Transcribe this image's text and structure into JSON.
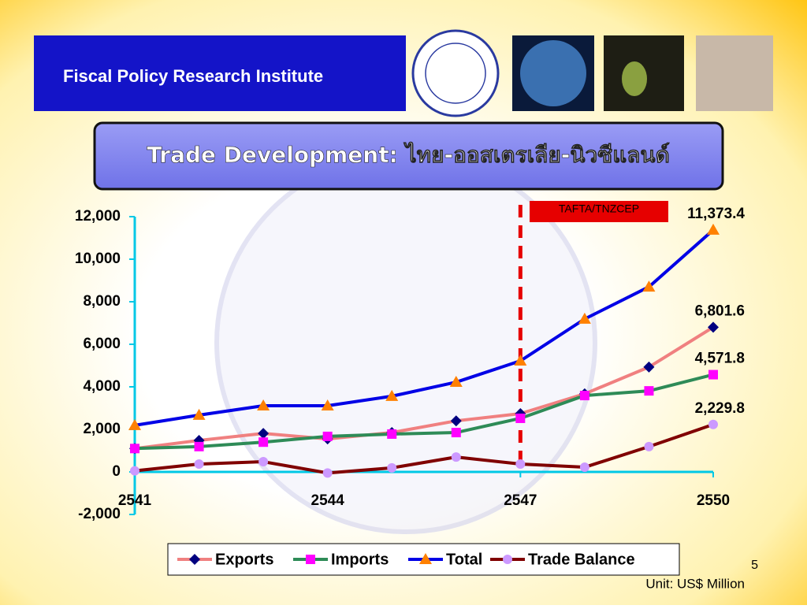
{
  "header": {
    "institute": "Fiscal Policy Research Institute"
  },
  "page_number": 5,
  "chart_data": {
    "type": "line",
    "title": "Trade Development: ไทย-ออสเตรเลีย-นิวซีแลนด์",
    "x": [
      2541,
      2542,
      2543,
      2544,
      2545,
      2546,
      2547,
      2548,
      2549,
      2550
    ],
    "xlim": [
      2541,
      2550
    ],
    "xticks": [
      2541,
      2544,
      2547,
      2550
    ],
    "ylim": [
      -2000,
      12000
    ],
    "yticks": [
      {
        "value": -2000,
        "label": "-2,000"
      },
      0,
      {
        "value": 2000,
        "label": "2,000"
      },
      {
        "value": 4000,
        "label": "4,000"
      },
      {
        "value": 6000,
        "label": "6,000"
      },
      {
        "value": 8000,
        "label": "8,000"
      },
      {
        "value": 10000,
        "label": "10,000"
      },
      {
        "value": 12000,
        "label": "12,000"
      }
    ],
    "legend": "bottom",
    "annotation": {
      "text": "TAFTA/TNZCEP",
      "x": 2547
    },
    "unit_note": "Unit: US$ Million",
    "series": [
      {
        "name": "Exports",
        "color": "#f08080",
        "marker": "diamond",
        "marker_color": "#000080",
        "values": [
          1100,
          1480,
          1810,
          1550,
          1850,
          2400,
          2740,
          3670,
          4930,
          6801.6
        ],
        "value_labels": [
          null,
          null,
          null,
          null,
          null,
          null,
          null,
          null,
          null,
          "6,801.6"
        ]
      },
      {
        "name": "Imports",
        "color": "#2e8b57",
        "marker": "square",
        "marker_color": "#ff00ff",
        "values": [
          1100,
          1190,
          1400,
          1670,
          1780,
          1850,
          2520,
          3590,
          3810,
          4571.8
        ],
        "value_labels": [
          null,
          null,
          null,
          null,
          null,
          null,
          null,
          null,
          null,
          "4,571.8"
        ]
      },
      {
        "name": "Total",
        "color": "#0000e6",
        "marker": "triangle",
        "marker_color": "#ff8000",
        "values": [
          2190,
          2670,
          3110,
          3110,
          3560,
          4220,
          5220,
          7190,
          8700,
          11373.4
        ],
        "value_labels": [
          null,
          null,
          null,
          null,
          null,
          null,
          null,
          null,
          null,
          "11,373.4"
        ]
      },
      {
        "name": "Trade Balance",
        "color": "#800000",
        "marker": "circle",
        "marker_color": "#cc99ff",
        "values": [
          50,
          370,
          480,
          -50,
          190,
          700,
          370,
          220,
          1190,
          2229.8
        ],
        "value_labels": [
          null,
          null,
          null,
          null,
          null,
          null,
          null,
          null,
          null,
          "2,229.8"
        ]
      }
    ]
  }
}
